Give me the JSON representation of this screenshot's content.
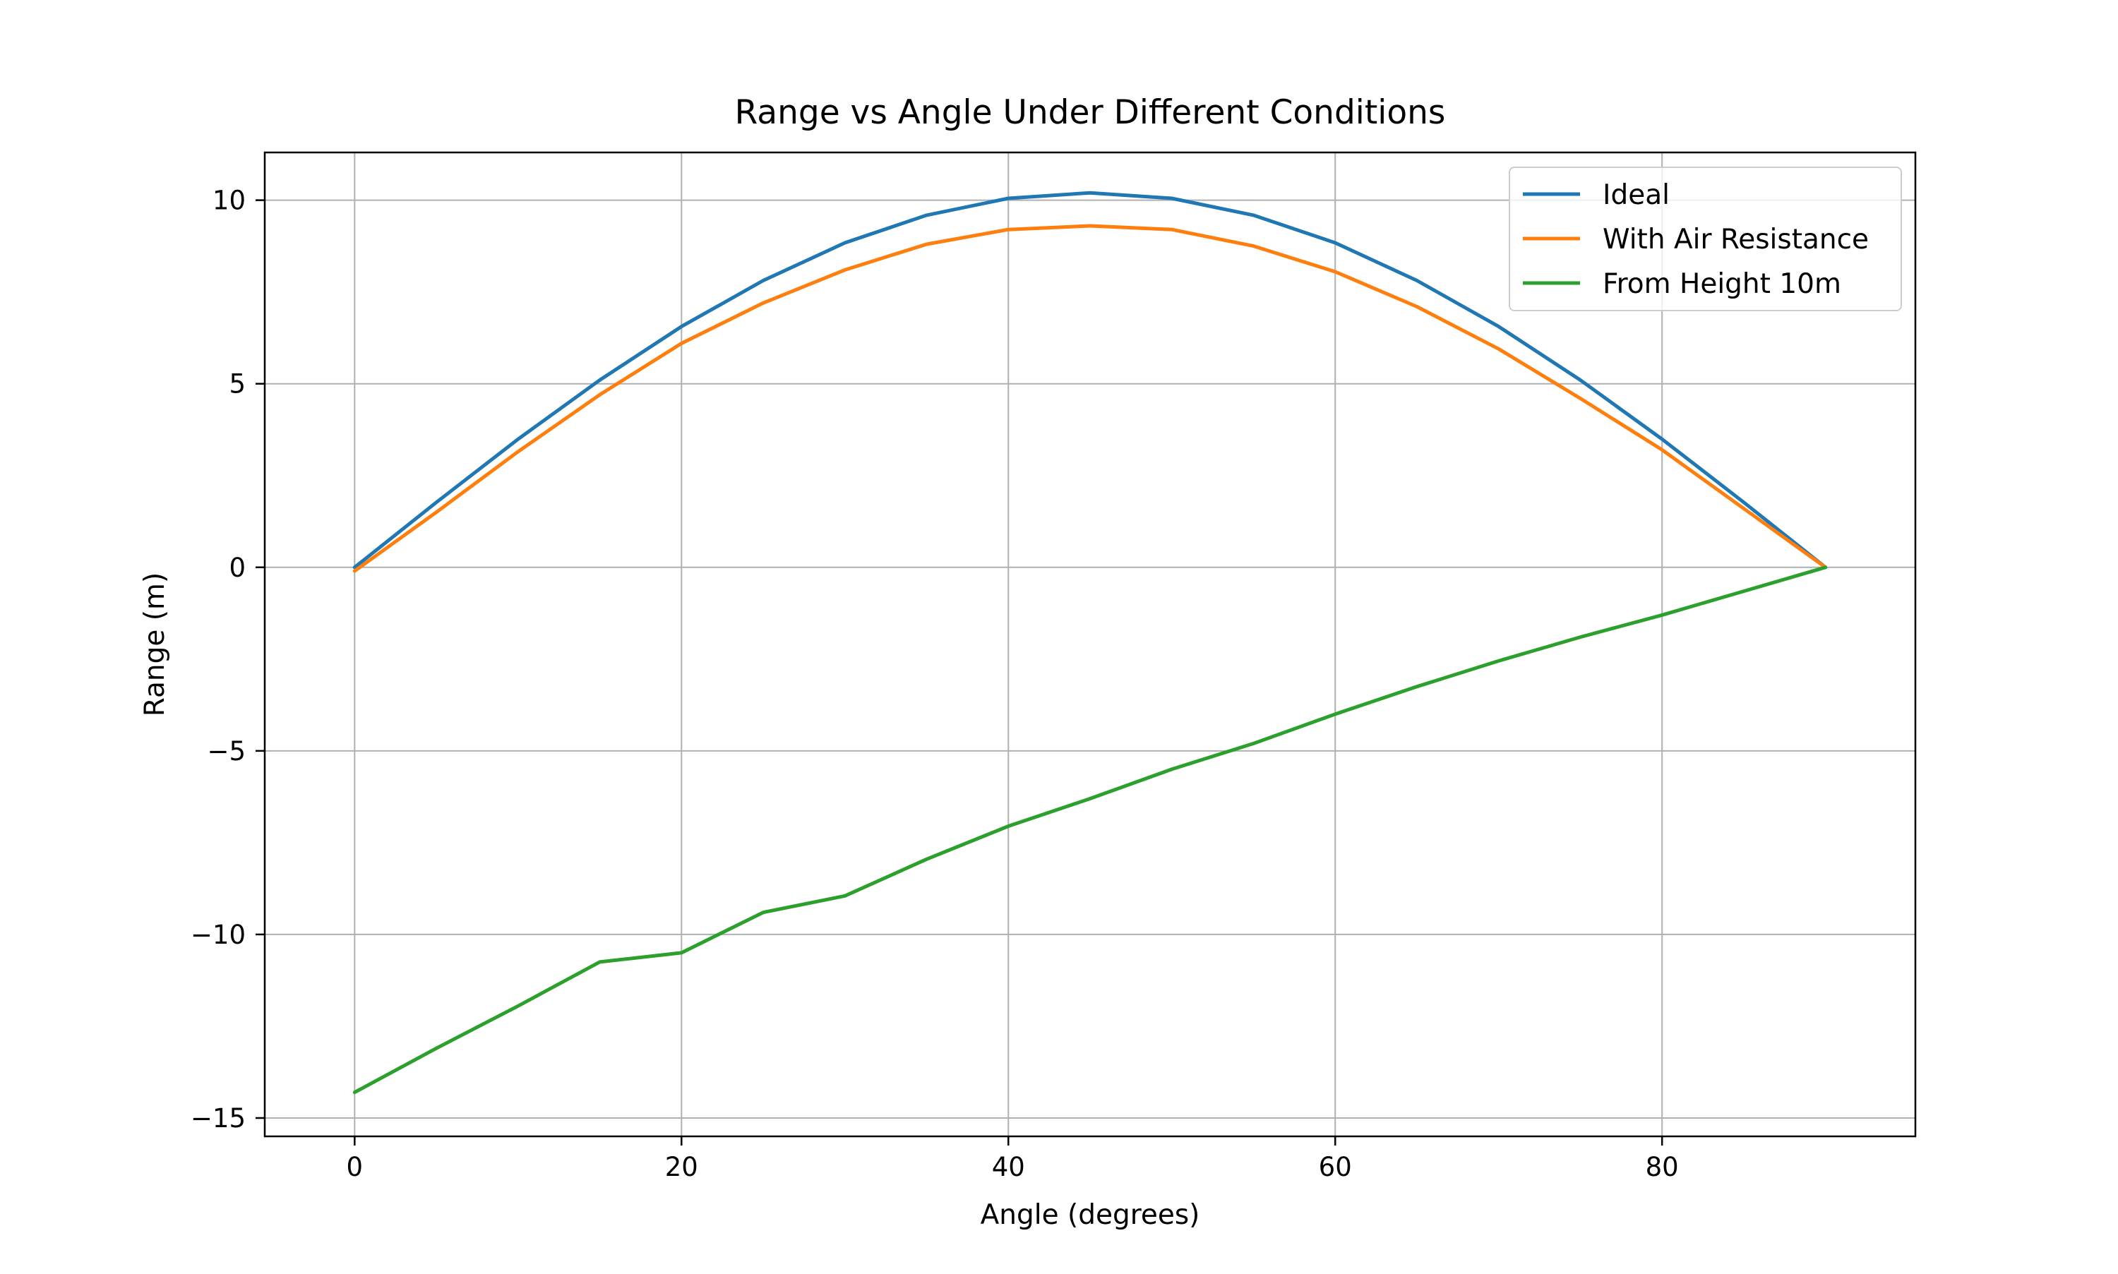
{
  "chart_data": {
    "type": "line",
    "title": "Range vs Angle Under Different Conditions",
    "xlabel": "Angle (degrees)",
    "ylabel": "Range (m)",
    "xlim": [
      -5.5,
      95.5
    ],
    "ylim": [
      -15.5,
      11.3
    ],
    "xticks": [
      0,
      20,
      40,
      60,
      80
    ],
    "xtick_labels": [
      "0",
      "20",
      "40",
      "60",
      "80"
    ],
    "yticks": [
      10,
      5,
      0,
      -5,
      -10,
      -15
    ],
    "ytick_labels": [
      "10",
      "5",
      "0",
      "−5",
      "−10",
      "−15"
    ],
    "grid": true,
    "legend_position": "upper right",
    "x": [
      0,
      5,
      10,
      15,
      20,
      25,
      30,
      35,
      40,
      45,
      50,
      55,
      60,
      65,
      70,
      75,
      80,
      85,
      90
    ],
    "series": [
      {
        "name": "Ideal",
        "color": "#1f77b4",
        "values": [
          0,
          1.77,
          3.49,
          5.1,
          6.56,
          7.81,
          8.84,
          9.59,
          10.05,
          10.2,
          10.05,
          9.59,
          8.84,
          7.81,
          6.56,
          5.1,
          3.49,
          1.77,
          0
        ]
      },
      {
        "name": "With Air Resistance",
        "color": "#ff7f0e",
        "values": [
          -0.1,
          1.5,
          3.15,
          4.7,
          6.1,
          7.2,
          8.1,
          8.8,
          9.2,
          9.3,
          9.2,
          8.75,
          8.05,
          7.1,
          5.95,
          4.6,
          3.2,
          1.6,
          0
        ]
      },
      {
        "name": "From Height 10m",
        "color": "#2ca02c",
        "values": [
          -14.3,
          -13.1,
          -11.95,
          -10.75,
          -10.5,
          -9.4,
          -8.95,
          -7.95,
          -7.05,
          -6.3,
          -5.5,
          -4.8,
          -4.0,
          -3.25,
          -2.55,
          -1.9,
          -1.3,
          -0.65,
          0
        ]
      }
    ]
  }
}
